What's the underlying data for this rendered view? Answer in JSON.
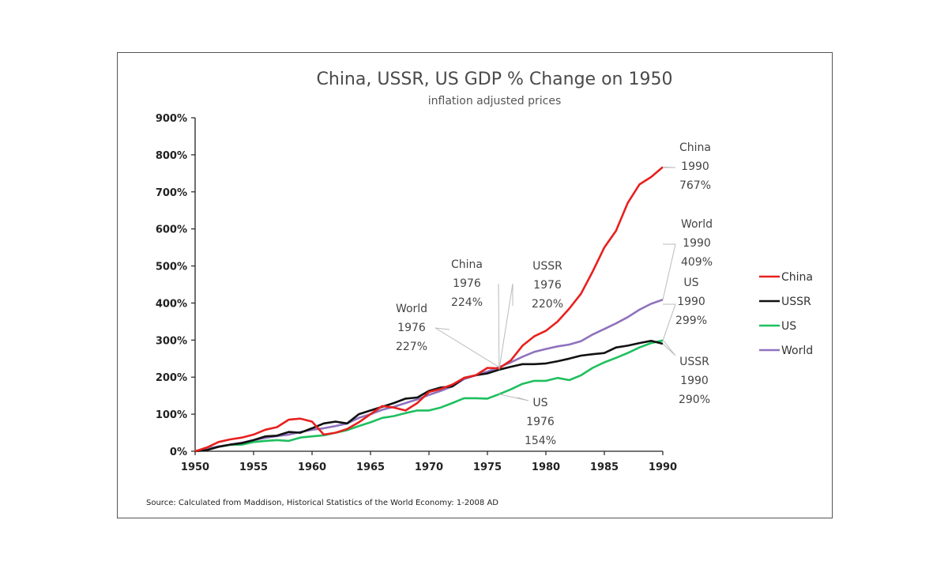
{
  "colors": {
    "China": "#e8201e",
    "USSR": "#111111",
    "US": "#1fbf5f",
    "World": "#8f72bd",
    "axis": "#222222",
    "leader": "#bbbbbb"
  },
  "chart_data": {
    "type": "line",
    "title": "China, USSR, US GDP  % Change on 1950",
    "subtitle": "inflation adjusted prices",
    "xlabel": "",
    "ylabel": "",
    "xlim": [
      1950,
      1990
    ],
    "ylim": [
      0,
      900
    ],
    "x_ticks": [
      "1950",
      "1955",
      "1960",
      "1965",
      "1970",
      "1975",
      "1980",
      "1985",
      "1990"
    ],
    "y_ticks": [
      "0%",
      "100%",
      "200%",
      "300%",
      "400%",
      "500%",
      "600%",
      "700%",
      "800%",
      "900%"
    ],
    "grid": false,
    "legend_position": "right",
    "source": "Source: Calculated from Maddison, Historical Statistics of the World Economy:  1-2008 AD",
    "series": [
      {
        "name": "China",
        "x": [
          1950,
          1951,
          1952,
          1953,
          1954,
          1955,
          1956,
          1957,
          1958,
          1959,
          1960,
          1961,
          1962,
          1963,
          1964,
          1965,
          1966,
          1967,
          1968,
          1969,
          1970,
          1971,
          1972,
          1973,
          1974,
          1975,
          1976,
          1977,
          1978,
          1979,
          1980,
          1981,
          1982,
          1983,
          1984,
          1985,
          1986,
          1987,
          1988,
          1989,
          1990
        ],
        "values": [
          0,
          10,
          25,
          32,
          37,
          45,
          58,
          65,
          85,
          88,
          80,
          45,
          50,
          60,
          78,
          100,
          122,
          118,
          110,
          130,
          160,
          168,
          180,
          198,
          205,
          225,
          224,
          245,
          285,
          310,
          325,
          350,
          385,
          425,
          485,
          550,
          595,
          670,
          720,
          740,
          767
        ]
      },
      {
        "name": "USSR",
        "x": [
          1950,
          1951,
          1952,
          1953,
          1954,
          1955,
          1956,
          1957,
          1958,
          1959,
          1960,
          1961,
          1962,
          1963,
          1964,
          1965,
          1966,
          1967,
          1968,
          1969,
          1970,
          1971,
          1972,
          1973,
          1974,
          1975,
          1976,
          1977,
          1978,
          1979,
          1980,
          1981,
          1982,
          1983,
          1984,
          1985,
          1986,
          1987,
          1988,
          1989,
          1990
        ],
        "values": [
          0,
          3,
          12,
          18,
          22,
          30,
          40,
          42,
          52,
          50,
          62,
          75,
          80,
          75,
          100,
          110,
          120,
          130,
          142,
          145,
          163,
          172,
          175,
          198,
          205,
          210,
          220,
          228,
          235,
          235,
          237,
          243,
          250,
          258,
          262,
          265,
          280,
          285,
          292,
          298,
          290
        ]
      },
      {
        "name": "US",
        "x": [
          1950,
          1951,
          1952,
          1953,
          1954,
          1955,
          1956,
          1957,
          1958,
          1959,
          1960,
          1961,
          1962,
          1963,
          1964,
          1965,
          1966,
          1967,
          1968,
          1969,
          1970,
          1971,
          1972,
          1973,
          1974,
          1975,
          1976,
          1977,
          1978,
          1979,
          1980,
          1981,
          1982,
          1983,
          1984,
          1985,
          1986,
          1987,
          1988,
          1989,
          1990
        ],
        "values": [
          0,
          8,
          12,
          17,
          18,
          25,
          28,
          30,
          28,
          37,
          40,
          43,
          50,
          57,
          68,
          78,
          90,
          95,
          103,
          110,
          110,
          118,
          130,
          143,
          143,
          142,
          154,
          167,
          182,
          190,
          190,
          198,
          192,
          205,
          225,
          240,
          252,
          265,
          280,
          292,
          299
        ]
      },
      {
        "name": "World",
        "x": [
          1950,
          1951,
          1952,
          1953,
          1954,
          1955,
          1956,
          1957,
          1958,
          1959,
          1960,
          1961,
          1962,
          1963,
          1964,
          1965,
          1966,
          1967,
          1968,
          1969,
          1970,
          1971,
          1972,
          1973,
          1974,
          1975,
          1976,
          1977,
          1978,
          1979,
          1980,
          1981,
          1982,
          1983,
          1984,
          1985,
          1986,
          1987,
          1988,
          1989,
          1990
        ],
        "values": [
          0,
          6,
          13,
          18,
          23,
          30,
          36,
          41,
          45,
          52,
          58,
          62,
          68,
          75,
          90,
          100,
          112,
          120,
          130,
          140,
          152,
          163,
          175,
          195,
          205,
          215,
          227,
          240,
          255,
          268,
          276,
          283,
          288,
          297,
          315,
          330,
          345,
          362,
          382,
          398,
          409
        ]
      }
    ],
    "annotations": [
      {
        "series": "China",
        "lines": [
          "China",
          "1976",
          "224%"
        ],
        "x": 1976,
        "y": 224
      },
      {
        "series": "USSR",
        "lines": [
          "USSR",
          "1976",
          "220%"
        ],
        "x": 1976,
        "y": 220
      },
      {
        "series": "World",
        "lines": [
          "World",
          "1976",
          "227%"
        ],
        "x": 1976,
        "y": 227
      },
      {
        "series": "US",
        "lines": [
          "US",
          "1976",
          "154%"
        ],
        "x": 1976,
        "y": 154
      },
      {
        "series": "China",
        "lines": [
          "China",
          "1990",
          "767%"
        ],
        "x": 1990,
        "y": 767
      },
      {
        "series": "World",
        "lines": [
          "World",
          "1990",
          "409%"
        ],
        "x": 1990,
        "y": 409
      },
      {
        "series": "US",
        "lines": [
          "US",
          "1990",
          "299%"
        ],
        "x": 1990,
        "y": 299
      },
      {
        "series": "USSR",
        "lines": [
          "USSR",
          "1990",
          "290%"
        ],
        "x": 1990,
        "y": 290
      }
    ]
  }
}
